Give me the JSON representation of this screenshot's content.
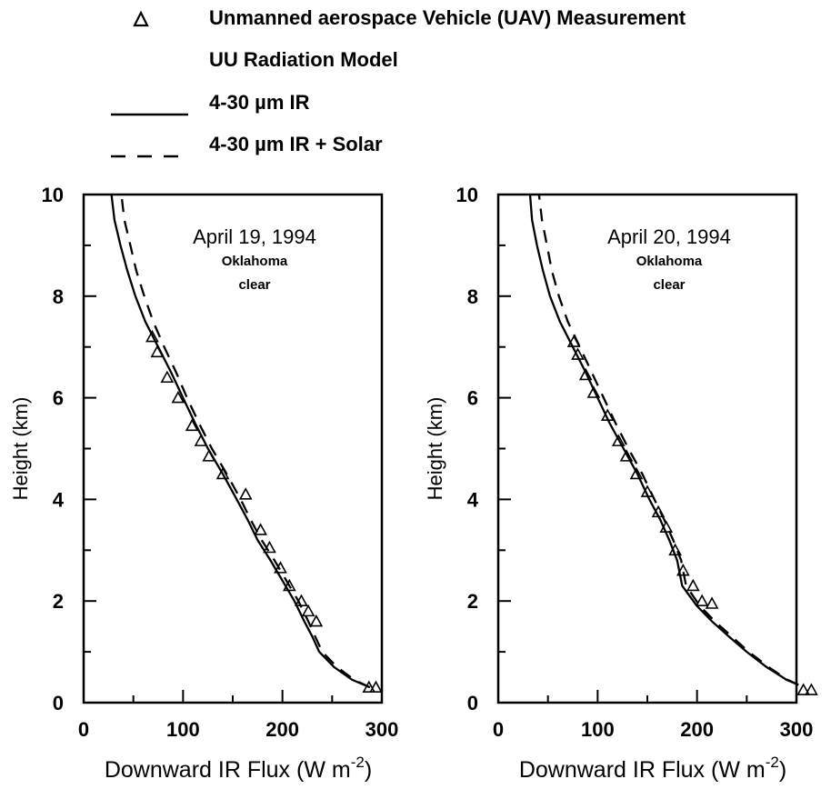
{
  "legend": {
    "measurement": "Unmanned aerospace Vehicle (UAV) Measurement",
    "model_header": "UU Radiation Model",
    "solid": "4-30 µm IR",
    "dashed": "4-30 µm IR + Solar"
  },
  "chart_data": [
    {
      "type": "line",
      "annotation": [
        "April 19, 1994",
        "Oklahoma",
        "clear"
      ],
      "xlabel": "Downward IR Flux (W m",
      "xlabel_sup": "-2",
      "xlabel_end": ")",
      "ylabel": "Height (km)",
      "xlim": [
        0,
        300
      ],
      "ylim": [
        0,
        10
      ],
      "xticks": [
        0,
        100,
        200,
        300
      ],
      "yticks": [
        0,
        2,
        4,
        6,
        8,
        10
      ],
      "grid": false,
      "series": [
        {
          "style": "solid",
          "x": [
            288,
            270,
            252,
            237,
            230,
            222,
            212,
            200,
            188,
            175,
            165,
            154,
            140,
            125,
            112,
            100,
            88,
            75,
            62,
            52,
            44,
            37,
            31,
            28
          ],
          "y": [
            0.3,
            0.45,
            0.7,
            1.0,
            1.3,
            1.6,
            2.0,
            2.4,
            2.8,
            3.2,
            3.6,
            4.0,
            4.5,
            5.0,
            5.5,
            6.0,
            6.5,
            7.0,
            7.5,
            8.0,
            8.5,
            9.0,
            9.5,
            10.0
          ]
        },
        {
          "style": "dashed",
          "x": [
            288,
            272,
            255,
            240,
            233,
            226,
            216,
            204,
            192,
            179,
            168,
            158,
            144,
            129,
            116,
            104,
            93,
            81,
            70,
            61,
            53,
            47,
            41,
            38
          ],
          "y": [
            0.3,
            0.45,
            0.7,
            1.0,
            1.3,
            1.6,
            2.0,
            2.4,
            2.8,
            3.2,
            3.6,
            4.0,
            4.5,
            5.0,
            5.5,
            6.0,
            6.5,
            7.0,
            7.5,
            8.0,
            8.5,
            9.0,
            9.5,
            10.0
          ]
        },
        {
          "style": "triangle",
          "x": [
            69,
            74,
            84,
            95,
            109,
            118,
            126,
            140,
            163,
            178,
            187,
            198,
            207,
            219,
            226,
            234,
            287,
            294
          ],
          "y": [
            7.2,
            6.9,
            6.4,
            6.0,
            5.45,
            5.15,
            4.85,
            4.5,
            4.1,
            3.4,
            3.05,
            2.65,
            2.3,
            2.0,
            1.8,
            1.6,
            0.3,
            0.3
          ]
        }
      ]
    },
    {
      "type": "line",
      "annotation": [
        "April 20, 1994",
        "Oklahoma",
        "clear"
      ],
      "xlabel": "Downward IR Flux (W m",
      "xlabel_sup": "-2",
      "xlabel_end": ")",
      "ylabel": "Height (km)",
      "xlim": [
        0,
        300
      ],
      "ylim": [
        0,
        10
      ],
      "xticks": [
        0,
        100,
        200,
        300
      ],
      "yticks": [
        0,
        2,
        4,
        6,
        8,
        10
      ],
      "grid": false,
      "series": [
        {
          "style": "solid",
          "x": [
            302,
            290,
            270,
            250,
            232,
            215,
            200,
            185,
            180,
            172,
            163,
            152,
            140,
            126,
            112,
            100,
            88,
            75,
            62,
            52,
            45,
            39,
            34,
            32
          ],
          "y": [
            0.35,
            0.45,
            0.7,
            1.0,
            1.3,
            1.6,
            1.9,
            2.3,
            2.8,
            3.2,
            3.6,
            4.0,
            4.5,
            5.0,
            5.5,
            6.0,
            6.5,
            7.0,
            7.5,
            8.0,
            8.5,
            9.0,
            9.5,
            10.0
          ]
        },
        {
          "style": "dashed",
          "x": [
            302,
            291,
            272,
            252,
            235,
            218,
            203,
            189,
            184,
            176,
            167,
            157,
            145,
            131,
            118,
            106,
            94,
            82,
            70,
            61,
            54,
            49,
            44,
            41
          ],
          "y": [
            0.35,
            0.45,
            0.7,
            1.0,
            1.3,
            1.6,
            1.9,
            2.3,
            2.8,
            3.2,
            3.6,
            4.0,
            4.5,
            5.0,
            5.5,
            6.0,
            6.5,
            7.0,
            7.5,
            8.0,
            8.5,
            9.0,
            9.5,
            10.0
          ]
        },
        {
          "style": "triangle",
          "x": [
            76,
            80,
            88,
            96,
            110,
            121,
            129,
            139,
            150,
            161,
            169,
            178,
            186,
            196,
            205,
            215,
            307,
            315
          ],
          "y": [
            7.1,
            6.85,
            6.45,
            6.1,
            5.65,
            5.15,
            4.85,
            4.5,
            4.15,
            3.75,
            3.45,
            3.0,
            2.6,
            2.3,
            2.0,
            1.95,
            0.25,
            0.25
          ]
        }
      ]
    }
  ]
}
